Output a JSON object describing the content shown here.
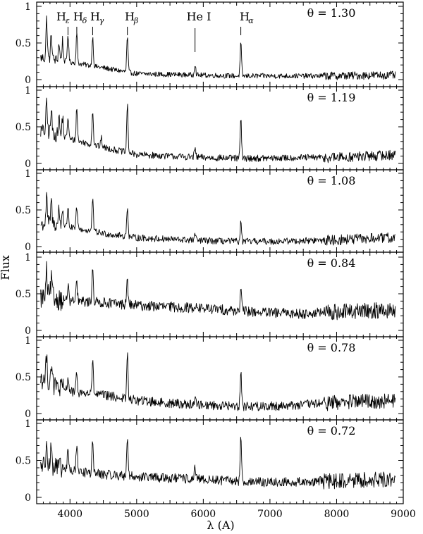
{
  "chart_data": {
    "type": "line",
    "ylabel": "Flux",
    "xlabel": "λ (A)",
    "xlim": [
      3500,
      9000
    ],
    "ylim": [
      0,
      1
    ],
    "x_ticks": [
      4000,
      5000,
      6000,
      7000,
      8000,
      9000
    ],
    "y_tick_labels": [
      "0",
      "0.5",
      "1"
    ],
    "y_ticks": [
      0,
      0.5,
      1
    ],
    "line_markers": [
      {
        "label": "H",
        "sub": "ε",
        "wavelength": 3970
      },
      {
        "label": "H",
        "sub": "δ",
        "wavelength": 4102
      },
      {
        "label": "H",
        "sub": "γ",
        "wavelength": 4340
      },
      {
        "label": "H",
        "sub": "β",
        "wavelength": 4861
      },
      {
        "label": "He I",
        "sub": "",
        "wavelength": 5876
      },
      {
        "label": "H",
        "sub": "α",
        "wavelength": 6563
      }
    ],
    "panels": [
      {
        "label": "θ = 1.30",
        "continuum": [
          [
            3550,
            0.3
          ],
          [
            3700,
            0.28
          ],
          [
            4000,
            0.24
          ],
          [
            4500,
            0.16
          ],
          [
            5000,
            0.08
          ],
          [
            5500,
            0.07
          ],
          [
            6000,
            0.06
          ],
          [
            6500,
            0.05
          ],
          [
            7000,
            0.05
          ],
          [
            7500,
            0.05
          ],
          [
            8000,
            0.05
          ],
          [
            8500,
            0.06
          ],
          [
            8900,
            0.06
          ]
        ],
        "noise": 0.035,
        "lines": [
          [
            3650,
            0.55
          ],
          [
            3720,
            0.35
          ],
          [
            3835,
            0.25
          ],
          [
            3889,
            0.28
          ],
          [
            3970,
            0.38
          ],
          [
            4102,
            0.4
          ],
          [
            4340,
            0.4
          ],
          [
            4861,
            0.48
          ],
          [
            5876,
            0.16
          ],
          [
            6563,
            0.45
          ]
        ]
      },
      {
        "label": "θ = 1.19",
        "continuum": [
          [
            3550,
            0.45
          ],
          [
            3700,
            0.42
          ],
          [
            4000,
            0.33
          ],
          [
            4500,
            0.22
          ],
          [
            5000,
            0.12
          ],
          [
            5500,
            0.1
          ],
          [
            6000,
            0.08
          ],
          [
            6500,
            0.07
          ],
          [
            7000,
            0.07
          ],
          [
            7500,
            0.08
          ],
          [
            8000,
            0.08
          ],
          [
            8500,
            0.1
          ],
          [
            8900,
            0.12
          ]
        ],
        "noise": 0.045,
        "lines": [
          [
            3650,
            0.4
          ],
          [
            3720,
            0.3
          ],
          [
            3835,
            0.25
          ],
          [
            3889,
            0.28
          ],
          [
            3970,
            0.3
          ],
          [
            4102,
            0.45
          ],
          [
            4340,
            0.48
          ],
          [
            4471,
            0.12
          ],
          [
            4861,
            0.65
          ],
          [
            5876,
            0.12
          ],
          [
            6563,
            0.55
          ]
        ]
      },
      {
        "label": "θ = 1.08",
        "continuum": [
          [
            3550,
            0.3
          ],
          [
            3700,
            0.32
          ],
          [
            4000,
            0.26
          ],
          [
            4500,
            0.18
          ],
          [
            5000,
            0.12
          ],
          [
            5500,
            0.1
          ],
          [
            6000,
            0.08
          ],
          [
            6500,
            0.07
          ],
          [
            7000,
            0.07
          ],
          [
            7500,
            0.08
          ],
          [
            8000,
            0.09
          ],
          [
            8500,
            0.11
          ],
          [
            8900,
            0.12
          ]
        ],
        "noise": 0.045,
        "lines": [
          [
            3650,
            0.35
          ],
          [
            3720,
            0.3
          ],
          [
            3835,
            0.22
          ],
          [
            3889,
            0.25
          ],
          [
            3970,
            0.28
          ],
          [
            4102,
            0.3
          ],
          [
            4340,
            0.45
          ],
          [
            4861,
            0.42
          ],
          [
            5876,
            0.08
          ],
          [
            6563,
            0.25
          ]
        ]
      },
      {
        "label": "θ = 0.84",
        "continuum": [
          [
            3550,
            0.45
          ],
          [
            3700,
            0.45
          ],
          [
            4000,
            0.4
          ],
          [
            4500,
            0.38
          ],
          [
            5000,
            0.34
          ],
          [
            5500,
            0.32
          ],
          [
            6000,
            0.3
          ],
          [
            6500,
            0.27
          ],
          [
            7000,
            0.24
          ],
          [
            7500,
            0.23
          ],
          [
            8000,
            0.25
          ],
          [
            8500,
            0.27
          ],
          [
            8900,
            0.27
          ]
        ],
        "noise": 0.07,
        "lines": [
          [
            3650,
            0.35
          ],
          [
            3720,
            0.25
          ],
          [
            3970,
            0.2
          ],
          [
            4102,
            0.25
          ],
          [
            4340,
            0.5
          ],
          [
            4861,
            0.35
          ],
          [
            5876,
            0.05
          ],
          [
            6563,
            0.3
          ]
        ]
      },
      {
        "label": "θ = 0.78",
        "continuum": [
          [
            3550,
            0.5
          ],
          [
            3700,
            0.4
          ],
          [
            4000,
            0.3
          ],
          [
            4500,
            0.25
          ],
          [
            5000,
            0.18
          ],
          [
            5500,
            0.14
          ],
          [
            6000,
            0.12
          ],
          [
            6500,
            0.1
          ],
          [
            7000,
            0.1
          ],
          [
            7500,
            0.12
          ],
          [
            8000,
            0.15
          ],
          [
            8500,
            0.17
          ],
          [
            8900,
            0.17
          ]
        ],
        "noise": 0.065,
        "lines": [
          [
            3650,
            0.4
          ],
          [
            3720,
            0.3
          ],
          [
            3970,
            0.2
          ],
          [
            4102,
            0.25
          ],
          [
            4340,
            0.45
          ],
          [
            4861,
            0.6
          ],
          [
            5876,
            0.08
          ],
          [
            6563,
            0.5
          ]
        ]
      },
      {
        "label": "θ = 0.72",
        "continuum": [
          [
            3550,
            0.45
          ],
          [
            3700,
            0.42
          ],
          [
            4000,
            0.36
          ],
          [
            4500,
            0.31
          ],
          [
            5000,
            0.28
          ],
          [
            5500,
            0.26
          ],
          [
            6000,
            0.24
          ],
          [
            6500,
            0.22
          ],
          [
            7000,
            0.2
          ],
          [
            7500,
            0.21
          ],
          [
            8000,
            0.22
          ],
          [
            8500,
            0.24
          ],
          [
            8900,
            0.24
          ]
        ],
        "noise": 0.065,
        "lines": [
          [
            3650,
            0.45
          ],
          [
            3720,
            0.3
          ],
          [
            3970,
            0.3
          ],
          [
            4102,
            0.4
          ],
          [
            4340,
            0.45
          ],
          [
            4861,
            0.55
          ],
          [
            5876,
            0.15
          ],
          [
            6563,
            0.6
          ]
        ]
      }
    ]
  }
}
